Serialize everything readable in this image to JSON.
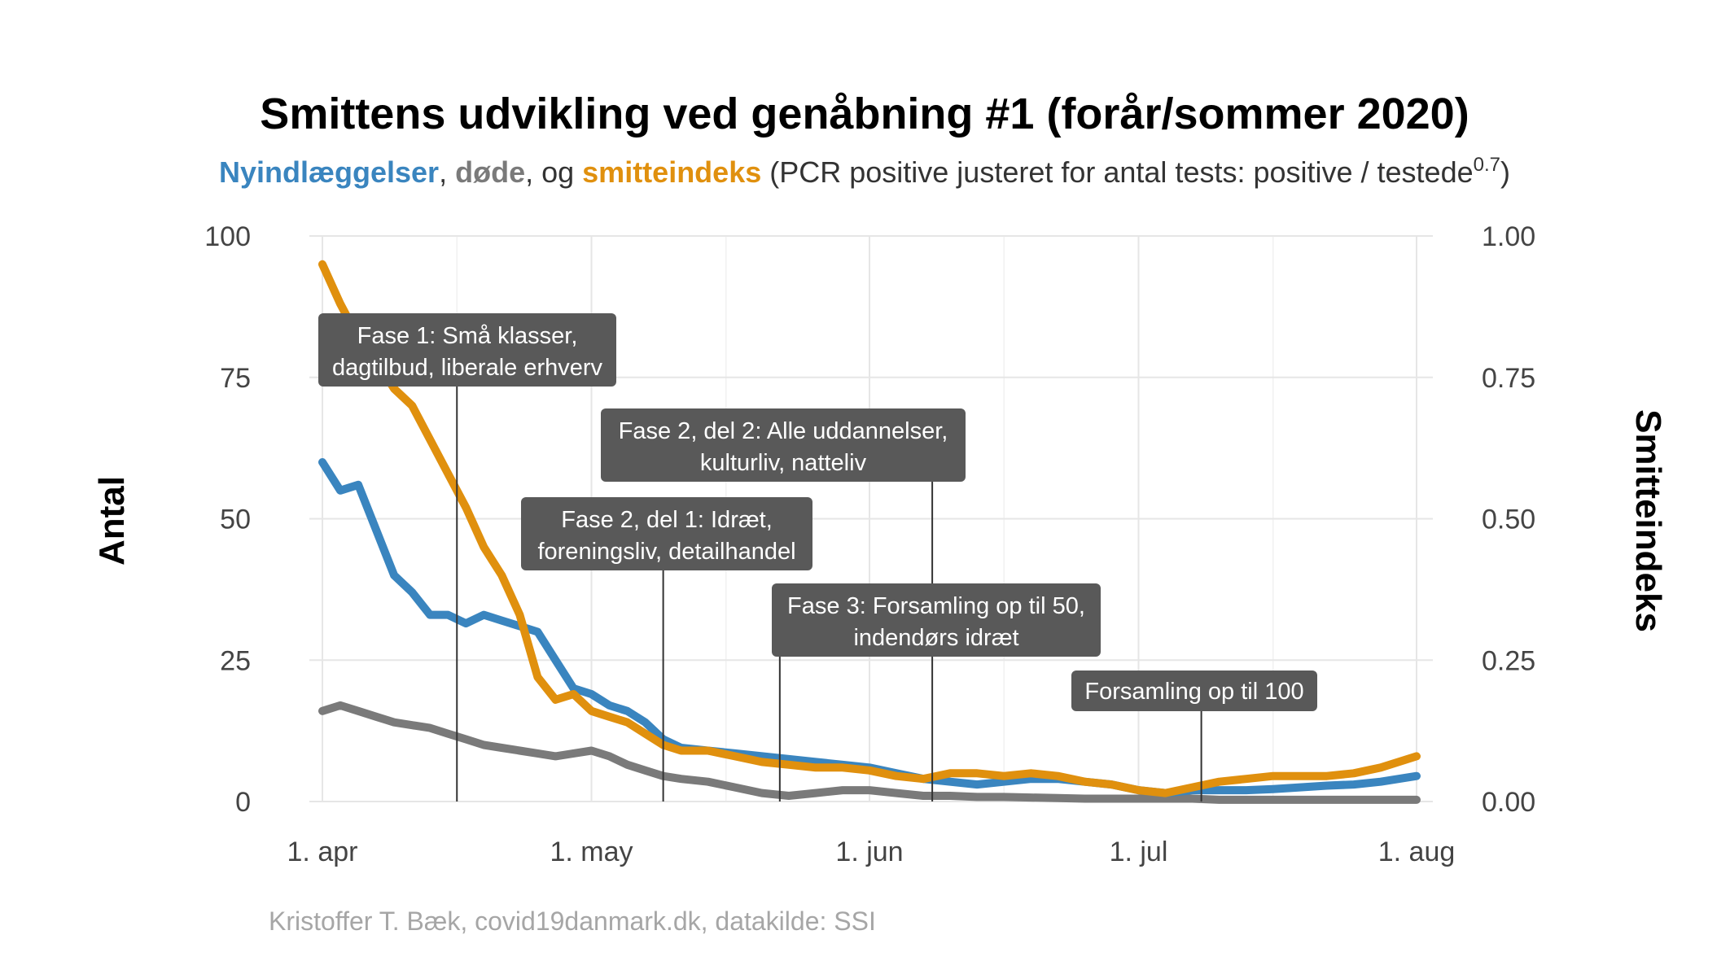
{
  "chart_data": {
    "type": "line",
    "title": "Smittens udvikling ved genåbning #1 (forår/sommer 2020)",
    "subtitle": {
      "s1": "Nyindlæggelser",
      "s2": ", ",
      "s3": "døde",
      "s4": ", og ",
      "s5": "smitteindeks",
      "s6": " (PCR positive justeret for antal tests: positive / testede",
      "s7": "0.7",
      "s8": ")"
    },
    "ylabel_left": "Antal",
    "ylabel_right": "Smitteindeks",
    "caption": "Kristoffer T. Bæk, covid19danmark.dk, datakilde: SSI",
    "x_ticks": [
      "1. apr",
      "1. may",
      "1. jun",
      "1. jul",
      "1. aug"
    ],
    "y_ticks_left": [
      "0",
      "25",
      "50",
      "75",
      "100"
    ],
    "y_ticks_right": [
      "0.00",
      "0.25",
      "0.50",
      "0.75",
      "1.00"
    ],
    "ylim_left": [
      0,
      100
    ],
    "ylim_right": [
      0,
      1
    ],
    "x_range": [
      "2020-04-01",
      "2020-08-01"
    ],
    "grid": true,
    "colors": {
      "hosp": "#3a85bf",
      "deaths": "#7a7a7a",
      "index": "#e0900e",
      "annotation_bg": "#595959"
    },
    "series": [
      {
        "name": "Nyindlæggelser",
        "axis": "left",
        "x": [
          "2020-04-01",
          "2020-04-03",
          "2020-04-05",
          "2020-04-07",
          "2020-04-09",
          "2020-04-11",
          "2020-04-13",
          "2020-04-15",
          "2020-04-17",
          "2020-04-19",
          "2020-04-21",
          "2020-04-23",
          "2020-04-25",
          "2020-04-27",
          "2020-04-29",
          "2020-05-01",
          "2020-05-03",
          "2020-05-05",
          "2020-05-07",
          "2020-05-09",
          "2020-05-11",
          "2020-05-14",
          "2020-05-17",
          "2020-05-20",
          "2020-05-23",
          "2020-05-26",
          "2020-05-29",
          "2020-06-01",
          "2020-06-04",
          "2020-06-07",
          "2020-06-10",
          "2020-06-13",
          "2020-06-16",
          "2020-06-19",
          "2020-06-22",
          "2020-06-25",
          "2020-06-28",
          "2020-07-01",
          "2020-07-04",
          "2020-07-07",
          "2020-07-10",
          "2020-07-13",
          "2020-07-16",
          "2020-07-19",
          "2020-07-22",
          "2020-07-25",
          "2020-07-28",
          "2020-08-01"
        ],
        "values": [
          60,
          55,
          56,
          48,
          40,
          37,
          33,
          33,
          31.5,
          33,
          32,
          31,
          30,
          25,
          20,
          19,
          17,
          16,
          14,
          11,
          9.5,
          9,
          8.5,
          8,
          7.5,
          7,
          6.5,
          6,
          5,
          4,
          3.5,
          3,
          3.5,
          4,
          4,
          3.5,
          3,
          2,
          1.5,
          2,
          2,
          2,
          2.2,
          2.5,
          2.8,
          3,
          3.5,
          4.5
        ]
      },
      {
        "name": "døde",
        "axis": "left",
        "x": [
          "2020-04-01",
          "2020-04-03",
          "2020-04-05",
          "2020-04-07",
          "2020-04-09",
          "2020-04-11",
          "2020-04-13",
          "2020-04-15",
          "2020-04-17",
          "2020-04-19",
          "2020-04-21",
          "2020-04-23",
          "2020-04-25",
          "2020-04-27",
          "2020-04-29",
          "2020-05-01",
          "2020-05-03",
          "2020-05-05",
          "2020-05-07",
          "2020-05-09",
          "2020-05-11",
          "2020-05-14",
          "2020-05-17",
          "2020-05-20",
          "2020-05-23",
          "2020-05-26",
          "2020-05-29",
          "2020-06-01",
          "2020-06-04",
          "2020-06-07",
          "2020-06-10",
          "2020-06-13",
          "2020-06-16",
          "2020-06-19",
          "2020-06-22",
          "2020-06-25",
          "2020-06-28",
          "2020-07-01",
          "2020-07-04",
          "2020-07-07",
          "2020-07-10",
          "2020-07-13",
          "2020-07-16",
          "2020-07-19",
          "2020-07-22",
          "2020-07-25",
          "2020-07-28",
          "2020-08-01"
        ],
        "values": [
          16,
          17,
          16,
          15,
          14,
          13.5,
          13,
          12,
          11,
          10,
          9.5,
          9,
          8.5,
          8,
          8.5,
          9,
          8,
          6.5,
          5.5,
          4.5,
          4,
          3.5,
          2.5,
          1.5,
          1,
          1.5,
          2,
          2,
          1.5,
          1,
          1,
          0.8,
          0.8,
          0.7,
          0.6,
          0.5,
          0.5,
          0.5,
          0.5,
          0.5,
          0.3,
          0.3,
          0.3,
          0.3,
          0.3,
          0.3,
          0.3,
          0.3
        ]
      },
      {
        "name": "smitteindeks",
        "axis": "right",
        "x": [
          "2020-04-01",
          "2020-04-03",
          "2020-04-05",
          "2020-04-07",
          "2020-04-09",
          "2020-04-11",
          "2020-04-13",
          "2020-04-15",
          "2020-04-17",
          "2020-04-19",
          "2020-04-21",
          "2020-04-23",
          "2020-04-25",
          "2020-04-27",
          "2020-04-29",
          "2020-05-01",
          "2020-05-03",
          "2020-05-05",
          "2020-05-07",
          "2020-05-09",
          "2020-05-11",
          "2020-05-14",
          "2020-05-17",
          "2020-05-20",
          "2020-05-23",
          "2020-05-26",
          "2020-05-29",
          "2020-06-01",
          "2020-06-04",
          "2020-06-07",
          "2020-06-10",
          "2020-06-13",
          "2020-06-16",
          "2020-06-19",
          "2020-06-22",
          "2020-06-25",
          "2020-06-28",
          "2020-07-01",
          "2020-07-04",
          "2020-07-07",
          "2020-07-10",
          "2020-07-13",
          "2020-07-16",
          "2020-07-19",
          "2020-07-22",
          "2020-07-25",
          "2020-07-28",
          "2020-08-01"
        ],
        "values": [
          0.95,
          0.88,
          0.82,
          0.78,
          0.73,
          0.7,
          0.64,
          0.58,
          0.52,
          0.45,
          0.4,
          0.33,
          0.22,
          0.18,
          0.19,
          0.16,
          0.15,
          0.14,
          0.12,
          0.1,
          0.09,
          0.09,
          0.08,
          0.07,
          0.065,
          0.06,
          0.06,
          0.055,
          0.045,
          0.04,
          0.05,
          0.05,
          0.045,
          0.05,
          0.045,
          0.035,
          0.03,
          0.02,
          0.015,
          0.025,
          0.035,
          0.04,
          0.045,
          0.045,
          0.045,
          0.05,
          0.06,
          0.08
        ]
      }
    ],
    "annotations": [
      {
        "date": "2020-04-16",
        "line1": "Fase 1: Små klasser,",
        "line2": "dagtilbud, liberale erhverv"
      },
      {
        "date": "2020-06-08",
        "line1": "Fase 2, del 2: Alle uddannelser,",
        "line2": "kulturliv, natteliv"
      },
      {
        "date": "2020-05-09",
        "line1": "Fase 2, del 1: Idræt,",
        "line2": "foreningsliv, detailhandel"
      },
      {
        "date": "2020-05-22",
        "line1": "Fase 3: Forsamling op til 50,",
        "line2": "indendørs idræt"
      },
      {
        "date": "2020-07-08",
        "line1": "Forsamling op til 100",
        "line2": ""
      }
    ]
  }
}
